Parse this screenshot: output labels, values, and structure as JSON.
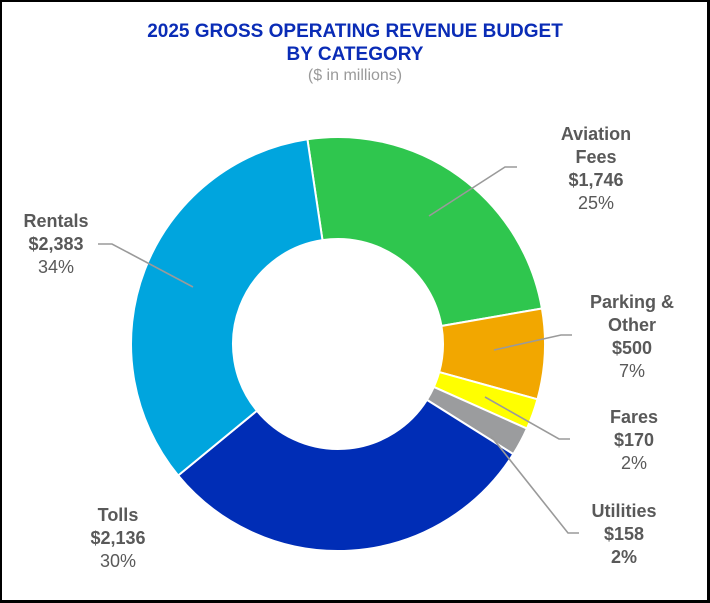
{
  "chart_data": {
    "type": "pie",
    "variant": "donut",
    "title": "2025 GROSS OPERATING REVENUE BUDGET BY CATEGORY",
    "title_lines": [
      "2025 GROSS OPERATING REVENUE BUDGET",
      "BY CATEGORY"
    ],
    "subtitle": "($ in millions)",
    "units": "$ millions",
    "start_angle_deg": -8.5,
    "direction": "clockwise",
    "slices": [
      {
        "name": "Aviation Fees",
        "name_lines": [
          "Aviation",
          "Fees"
        ],
        "value": 1746,
        "value_label": "$1,746",
        "percent": 25,
        "percent_label": "25%",
        "color": "#2fc64e"
      },
      {
        "name": "Parking & Other",
        "name_lines": [
          "Parking &",
          "Other"
        ],
        "value": 500,
        "value_label": "$500",
        "percent": 7,
        "percent_label": "7%",
        "color": "#f2a700"
      },
      {
        "name": "Fares",
        "name_lines": [
          "Fares"
        ],
        "value": 170,
        "value_label": "$170",
        "percent": 2,
        "percent_label": "2%",
        "color": "#ffff00"
      },
      {
        "name": "Utilities",
        "name_lines": [
          "Utilities"
        ],
        "value": 158,
        "value_label": "$158",
        "percent": 2,
        "percent_label": "2%",
        "color": "#9b9c9e",
        "percent_bold": true
      },
      {
        "name": "Tolls",
        "name_lines": [
          "Tolls"
        ],
        "value": 2136,
        "value_label": "$2,136",
        "percent": 30,
        "percent_label": "30%",
        "color": "#002db6"
      },
      {
        "name": "Rentals",
        "name_lines": [
          "Rentals"
        ],
        "value": 2383,
        "value_label": "$2,383",
        "percent": 34,
        "percent_label": "34%",
        "color": "#00a5de"
      }
    ],
    "title_color": "#0a2cb6",
    "label_color": "#595959",
    "leader_color": "#9a9a9a"
  }
}
